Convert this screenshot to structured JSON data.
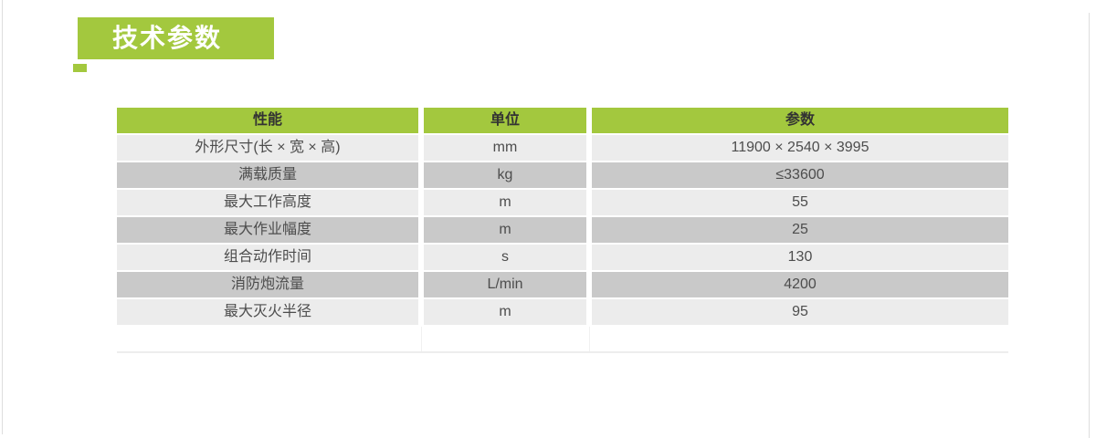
{
  "section": {
    "title": "技术参数"
  },
  "table": {
    "columns": [
      "性能",
      "单位",
      "参数"
    ],
    "rows": [
      {
        "label": "外形尺寸(长 × 宽 × 高)",
        "unit": "mm",
        "value": "11900 × 2540 × 3995"
      },
      {
        "label": "满载质量",
        "unit": "kg",
        "value": "≤33600"
      },
      {
        "label": "最大工作高度",
        "unit": "m",
        "value": "55"
      },
      {
        "label": "最大作业幅度",
        "unit": "m",
        "value": "25"
      },
      {
        "label": "组合动作时间",
        "unit": "s",
        "value": "130"
      },
      {
        "label": "消防炮流量",
        "unit": "L/min",
        "value": "4200"
      },
      {
        "label": "最大灭火半径",
        "unit": "m",
        "value": "95"
      }
    ]
  },
  "colors": {
    "accent_green": "#a3c83e",
    "row_light": "#ececec",
    "row_dark": "#c9c9c9",
    "header_text": "#333333",
    "cell_text": "#4d4d4d",
    "banner_text": "#ffffff"
  }
}
